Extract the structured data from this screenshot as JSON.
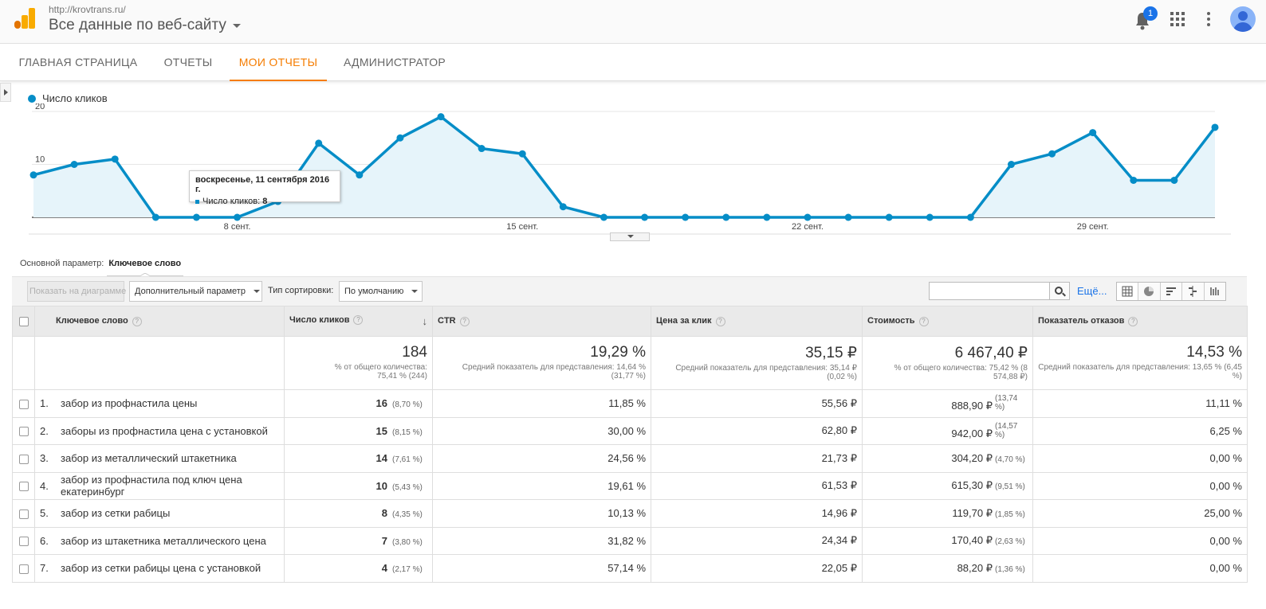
{
  "header": {
    "site_url": "http://krovtrans.ru/",
    "property_name": "Все данные по веб-сайту",
    "notification_count": "1",
    "logo_colors": [
      "#f9ab00",
      "#e37400"
    ]
  },
  "nav": {
    "tabs": [
      {
        "label": "ГЛАВНАЯ СТРАНИЦА"
      },
      {
        "label": "ОТЧЕТЫ"
      },
      {
        "label": "МОИ ОТЧЕТЫ",
        "active": true
      },
      {
        "label": "АДМИНИСТРАТОР"
      }
    ]
  },
  "chart_data": {
    "type": "area",
    "series": [
      {
        "name": "Число кликов",
        "color": "#058dc7",
        "values": [
          8,
          10,
          11,
          0,
          0,
          0,
          3,
          14,
          8,
          15,
          19,
          13,
          12,
          2,
          0,
          0,
          0,
          0,
          0,
          0,
          0,
          0,
          0,
          0,
          10,
          12,
          16,
          7,
          7,
          17
        ]
      }
    ],
    "x_ticks": [
      {
        "index": 5,
        "label": "8 сент."
      },
      {
        "index": 12,
        "label": "15 сент."
      },
      {
        "index": 19,
        "label": "22 сент."
      },
      {
        "index": 26,
        "label": "29 сент."
      }
    ],
    "y_ticks": [
      10,
      20
    ],
    "ylim": [
      0,
      20
    ],
    "grid": true,
    "tooltip": {
      "title": "воскресенье, 11 сентября 2016 г.",
      "series_label": "Число кликов:",
      "value": "8"
    }
  },
  "dimension": {
    "label": "Основной параметр:",
    "value": "Ключевое слово"
  },
  "toolbar": {
    "plot_button": "Показать на диаграмме",
    "secondary_dim": "Дополнительный параметр",
    "sort_label": "Тип сортировки:",
    "sort_value": "По умолчанию",
    "search_placeholder": "",
    "more_label": "Ещё..."
  },
  "table": {
    "columns": {
      "keyword": "Ключевое слово",
      "clicks": "Число кликов",
      "ctr": "CTR",
      "cpc": "Цена за клик",
      "cost": "Стоимость",
      "bounce": "Показатель отказов"
    },
    "totals": {
      "clicks": {
        "main": "184",
        "sub": "% от общего количества: 75,41 % (244)"
      },
      "ctr": {
        "main": "19,29 %",
        "sub": "Средний показатель для представления: 14,64 % (31,77 %)"
      },
      "cpc": {
        "main": "35,15 ₽",
        "sub": "Средний показатель для представления: 35,14 ₽ (0,02 %)"
      },
      "cost": {
        "main": "6 467,40 ₽",
        "sub": "% от общего количества: 75,42 % (8 574,88 ₽)"
      },
      "bounce": {
        "main": "14,53 %",
        "sub": "Средний показатель для представления: 13,65 % (6,45 %)"
      }
    },
    "rows": [
      {
        "idx": "1.",
        "keyword": "забор из профнастила цены",
        "clicks": "16",
        "clicks_pct": "(8,70 %)",
        "ctr": "11,85 %",
        "cpc": "55,56 ₽",
        "cost": "888,90 ₽",
        "cost_pct": "(13,74 %)",
        "bounce": "11,11 %"
      },
      {
        "idx": "2.",
        "keyword": "заборы из профнастила цена с установкой",
        "clicks": "15",
        "clicks_pct": "(8,15 %)",
        "ctr": "30,00 %",
        "cpc": "62,80 ₽",
        "cost": "942,00 ₽",
        "cost_pct": "(14,57 %)",
        "bounce": "6,25 %"
      },
      {
        "idx": "3.",
        "keyword": "забор из металлический штакетника",
        "clicks": "14",
        "clicks_pct": "(7,61 %)",
        "ctr": "24,56 %",
        "cpc": "21,73 ₽",
        "cost": "304,20 ₽",
        "cost_pct": "(4,70 %)",
        "bounce": "0,00 %"
      },
      {
        "idx": "4.",
        "keyword": "забор из профнастила под ключ цена екатеринбург",
        "clicks": "10",
        "clicks_pct": "(5,43 %)",
        "ctr": "19,61 %",
        "cpc": "61,53 ₽",
        "cost": "615,30 ₽",
        "cost_pct": "(9,51 %)",
        "bounce": "0,00 %"
      },
      {
        "idx": "5.",
        "keyword": "забор из сетки рабицы",
        "clicks": "8",
        "clicks_pct": "(4,35 %)",
        "ctr": "10,13 %",
        "cpc": "14,96 ₽",
        "cost": "119,70 ₽",
        "cost_pct": "(1,85 %)",
        "bounce": "25,00 %"
      },
      {
        "idx": "6.",
        "keyword": "забор из штакетника металлического цена",
        "clicks": "7",
        "clicks_pct": "(3,80 %)",
        "ctr": "31,82 %",
        "cpc": "24,34 ₽",
        "cost": "170,40 ₽",
        "cost_pct": "(2,63 %)",
        "bounce": "0,00 %"
      },
      {
        "idx": "7.",
        "keyword": "забор из сетки рабицы цена с установкой",
        "clicks": "4",
        "clicks_pct": "(2,17 %)",
        "ctr": "57,14 %",
        "cpc": "22,05 ₽",
        "cost": "88,20 ₽",
        "cost_pct": "(1,36 %)",
        "bounce": "0,00 %"
      }
    ]
  }
}
